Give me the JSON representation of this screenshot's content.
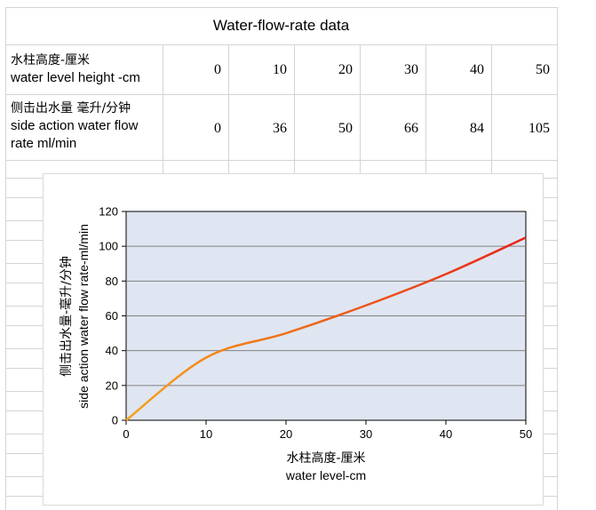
{
  "table": {
    "title": "Water-flow-rate data",
    "rows": [
      {
        "label_zh": "水柱高度-厘米",
        "label_en": "water level height -cm",
        "values": [
          "0",
          "10",
          "20",
          "30",
          "40",
          "50"
        ]
      },
      {
        "label_zh": "侧击出水量 毫升/分钟",
        "label_en_1": "side action water flow",
        "label_en_2": "rate ml/min",
        "values": [
          "0",
          "36",
          "50",
          "66",
          "84",
          "105"
        ]
      }
    ]
  },
  "chart_data": {
    "type": "line",
    "title": "",
    "xlabel_zh": "水柱高度-厘米",
    "xlabel_en": "water level-cm",
    "ylabel_zh": "侧击出水量-毫升/分钟",
    "ylabel_en": "side action water flow rate-ml/min",
    "x": [
      0,
      10,
      20,
      30,
      40,
      50
    ],
    "series": [
      {
        "values": [
          0,
          36,
          50,
          66,
          84,
          105
        ]
      }
    ],
    "xlim": [
      0,
      50
    ],
    "ylim": [
      0,
      120
    ],
    "xticks": [
      "0",
      "10",
      "20",
      "30",
      "40",
      "50"
    ],
    "yticks": [
      "0",
      "20",
      "40",
      "60",
      "80",
      "100",
      "120"
    ],
    "grid": "horizontal",
    "colors": {
      "plot_bg": "#dfe6f1",
      "grid": "#808080",
      "line_start": "#f5a21b",
      "line_end": "#e8231a"
    }
  }
}
